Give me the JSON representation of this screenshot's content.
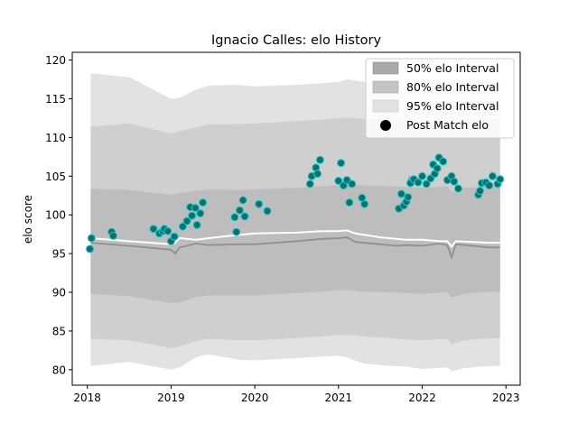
{
  "chart_data": {
    "type": "line",
    "title": "Ignacio Calles: elo History",
    "xlabel": "",
    "ylabel": "elo score",
    "xlim": [
      2017.82,
      2023.17
    ],
    "ylim": [
      78,
      121
    ],
    "x_ticks": [
      2018,
      2019,
      2020,
      2021,
      2022,
      2023
    ],
    "x_tick_labels": [
      "2018",
      "2019",
      "2020",
      "2021",
      "2022",
      "2023"
    ],
    "y_ticks": [
      80,
      85,
      90,
      95,
      100,
      105,
      110,
      115,
      120
    ],
    "y_tick_labels": [
      "80",
      "85",
      "90",
      "95",
      "100",
      "105",
      "110",
      "115",
      "120"
    ],
    "grid": false,
    "legend_position": "top-right",
    "legend": [
      {
        "label": "50% elo Interval",
        "kind": "patch",
        "color": "#a9a9a9"
      },
      {
        "label": "80% elo Interval",
        "kind": "patch",
        "color": "#c4c4c4"
      },
      {
        "label": "95% elo Interval",
        "kind": "patch",
        "color": "#e2e2e2"
      },
      {
        "label": "Post Match elo",
        "kind": "marker",
        "color": "#000000"
      }
    ],
    "colors": {
      "band_95": "#e2e2e2",
      "band_80": "#cfcfcf",
      "band_50": "#bdbdbd",
      "median_line": "#8f8f8f",
      "mean_line": "#ffffff",
      "point_fill": "#1b6b6b",
      "point_edge": "#00d5d5",
      "highlight_point": "#6fa8dc"
    },
    "series": [
      {
        "name": "95% elo Interval",
        "x": [
          2018.04,
          2018.5,
          2019.0,
          2019.1,
          2019.3,
          2019.45,
          2019.8,
          2020.0,
          2020.5,
          2020.8,
          2021.0,
          2021.1,
          2021.3,
          2021.6,
          2021.8,
          2022.0,
          2022.3,
          2022.35,
          2022.5,
          2022.7,
          2022.93
        ],
        "lower": [
          80.5,
          81.0,
          80.0,
          80.3,
          81.6,
          82.0,
          81.3,
          81.2,
          81.5,
          81.7,
          81.8,
          81.6,
          80.8,
          80.5,
          80.4,
          80.1,
          80.3,
          79.8,
          80.2,
          80.4,
          80.5
        ],
        "upper": [
          118.3,
          117.8,
          115.0,
          115.1,
          116.2,
          116.7,
          116.8,
          116.6,
          116.8,
          117.0,
          117.2,
          117.5,
          117.2,
          116.9,
          116.7,
          116.6,
          116.8,
          116.0,
          116.8,
          116.7,
          116.9
        ]
      },
      {
        "name": "80% elo Interval",
        "x": [
          2018.04,
          2018.5,
          2019.0,
          2019.1,
          2019.3,
          2019.45,
          2019.8,
          2020.0,
          2020.5,
          2020.8,
          2021.0,
          2021.1,
          2021.3,
          2021.6,
          2021.8,
          2022.0,
          2022.3,
          2022.35,
          2022.5,
          2022.7,
          2022.93
        ],
        "lower": [
          84.0,
          83.8,
          82.8,
          83.0,
          83.7,
          84.0,
          83.8,
          83.8,
          84.1,
          84.3,
          84.5,
          84.5,
          84.3,
          84.1,
          83.9,
          83.8,
          84.0,
          83.3,
          83.8,
          84.0,
          84.1
        ],
        "upper": [
          111.4,
          111.8,
          110.5,
          110.8,
          111.3,
          111.7,
          111.7,
          111.8,
          112.1,
          112.3,
          112.5,
          112.6,
          112.4,
          112.3,
          112.2,
          112.1,
          112.3,
          111.7,
          112.2,
          112.3,
          112.4
        ]
      },
      {
        "name": "50% elo Interval",
        "x": [
          2018.04,
          2018.5,
          2019.0,
          2019.1,
          2019.3,
          2019.45,
          2019.8,
          2020.0,
          2020.5,
          2020.8,
          2021.0,
          2021.1,
          2021.3,
          2021.6,
          2021.8,
          2022.0,
          2022.3,
          2022.35,
          2022.5,
          2022.7,
          2022.93
        ],
        "lower": [
          89.8,
          89.5,
          88.6,
          88.7,
          89.4,
          89.6,
          89.6,
          89.6,
          89.9,
          90.1,
          90.3,
          90.3,
          90.1,
          90.0,
          89.9,
          89.8,
          90.0,
          89.3,
          89.8,
          90.0,
          90.1
        ],
        "upper": [
          103.4,
          103.2,
          102.6,
          102.8,
          103.1,
          103.3,
          103.2,
          103.3,
          103.5,
          103.7,
          103.9,
          104.0,
          103.8,
          103.7,
          103.6,
          103.5,
          103.7,
          103.0,
          103.5,
          103.6,
          103.7
        ]
      },
      {
        "name": "Median elo",
        "x": [
          2018.04,
          2018.5,
          2019.0,
          2019.05,
          2019.1,
          2019.3,
          2019.45,
          2019.8,
          2020.0,
          2020.5,
          2020.8,
          2021.0,
          2021.1,
          2021.2,
          2021.5,
          2021.7,
          2021.8,
          2022.0,
          2022.2,
          2022.3,
          2022.35,
          2022.4,
          2022.6,
          2022.8,
          2022.93
        ],
        "values": [
          96.4,
          96.0,
          95.5,
          95.0,
          95.8,
          96.3,
          96.1,
          96.2,
          96.2,
          96.6,
          96.9,
          97.0,
          97.1,
          96.5,
          96.2,
          96.0,
          96.1,
          96.0,
          96.3,
          96.1,
          94.5,
          96.2,
          96.0,
          95.8,
          95.8
        ]
      },
      {
        "name": "Mean elo",
        "x": [
          2018.04,
          2018.5,
          2019.0,
          2019.05,
          2019.1,
          2019.3,
          2019.45,
          2019.8,
          2020.0,
          2020.5,
          2020.8,
          2021.0,
          2021.1,
          2021.2,
          2021.5,
          2021.8,
          2022.0,
          2022.2,
          2022.3,
          2022.35,
          2022.4,
          2022.6,
          2022.8,
          2022.93
        ],
        "values": [
          97.0,
          96.6,
          96.2,
          96.4,
          97.0,
          96.8,
          97.0,
          97.4,
          97.6,
          97.7,
          97.9,
          97.9,
          98.0,
          97.6,
          97.1,
          96.8,
          96.8,
          96.6,
          96.6,
          95.9,
          96.6,
          96.5,
          96.4,
          96.4
        ]
      },
      {
        "name": "Post Match elo",
        "x": [
          2018.03,
          2018.05,
          2018.29,
          2018.31,
          2018.79,
          2018.86,
          2018.9,
          2018.92,
          2018.96,
          2019.0,
          2019.04,
          2019.14,
          2019.19,
          2019.23,
          2019.25,
          2019.29,
          2019.31,
          2019.35,
          2019.38,
          2019.76,
          2019.78,
          2019.82,
          2019.86,
          2019.88,
          2020.05,
          2020.15,
          2020.66,
          2020.68,
          2020.73,
          2020.75,
          2020.78,
          2021.0,
          2021.03,
          2021.06,
          2021.1,
          2021.13,
          2021.16,
          2021.28,
          2021.31,
          2021.72,
          2021.75,
          2021.78,
          2021.81,
          2021.83,
          2021.86,
          2021.9,
          2021.95,
          2022.0,
          2022.05,
          2022.1,
          2022.13,
          2022.15,
          2022.18,
          2022.2,
          2022.25,
          2022.3,
          2022.35,
          2022.38,
          2022.43,
          2022.67,
          2022.69,
          2022.71,
          2022.76,
          2022.8,
          2022.84,
          2022.9,
          2022.93
        ],
        "values": [
          95.6,
          97.0,
          97.8,
          97.3,
          98.2,
          97.6,
          97.9,
          98.2,
          97.9,
          96.6,
          97.2,
          98.5,
          99.2,
          101.0,
          99.9,
          100.9,
          98.7,
          100.2,
          101.6,
          99.7,
          97.8,
          100.6,
          101.9,
          99.8,
          101.4,
          100.5,
          104.0,
          105.0,
          106.1,
          105.3,
          107.1,
          104.4,
          106.7,
          103.8,
          104.5,
          101.6,
          104.0,
          102.2,
          101.4,
          100.8,
          102.7,
          101.2,
          101.7,
          102.3,
          104.1,
          104.6,
          104.2,
          105.0,
          104.0,
          104.7,
          106.5,
          105.3,
          106.0,
          107.4,
          106.9,
          104.5,
          105.0,
          104.3,
          103.4,
          102.6,
          103.1,
          104.1,
          104.2,
          103.8,
          105.0,
          104.0,
          104.6
        ]
      }
    ],
    "highlighted_points": [
      {
        "x": 2021.88,
        "y": 104.5
      }
    ]
  }
}
